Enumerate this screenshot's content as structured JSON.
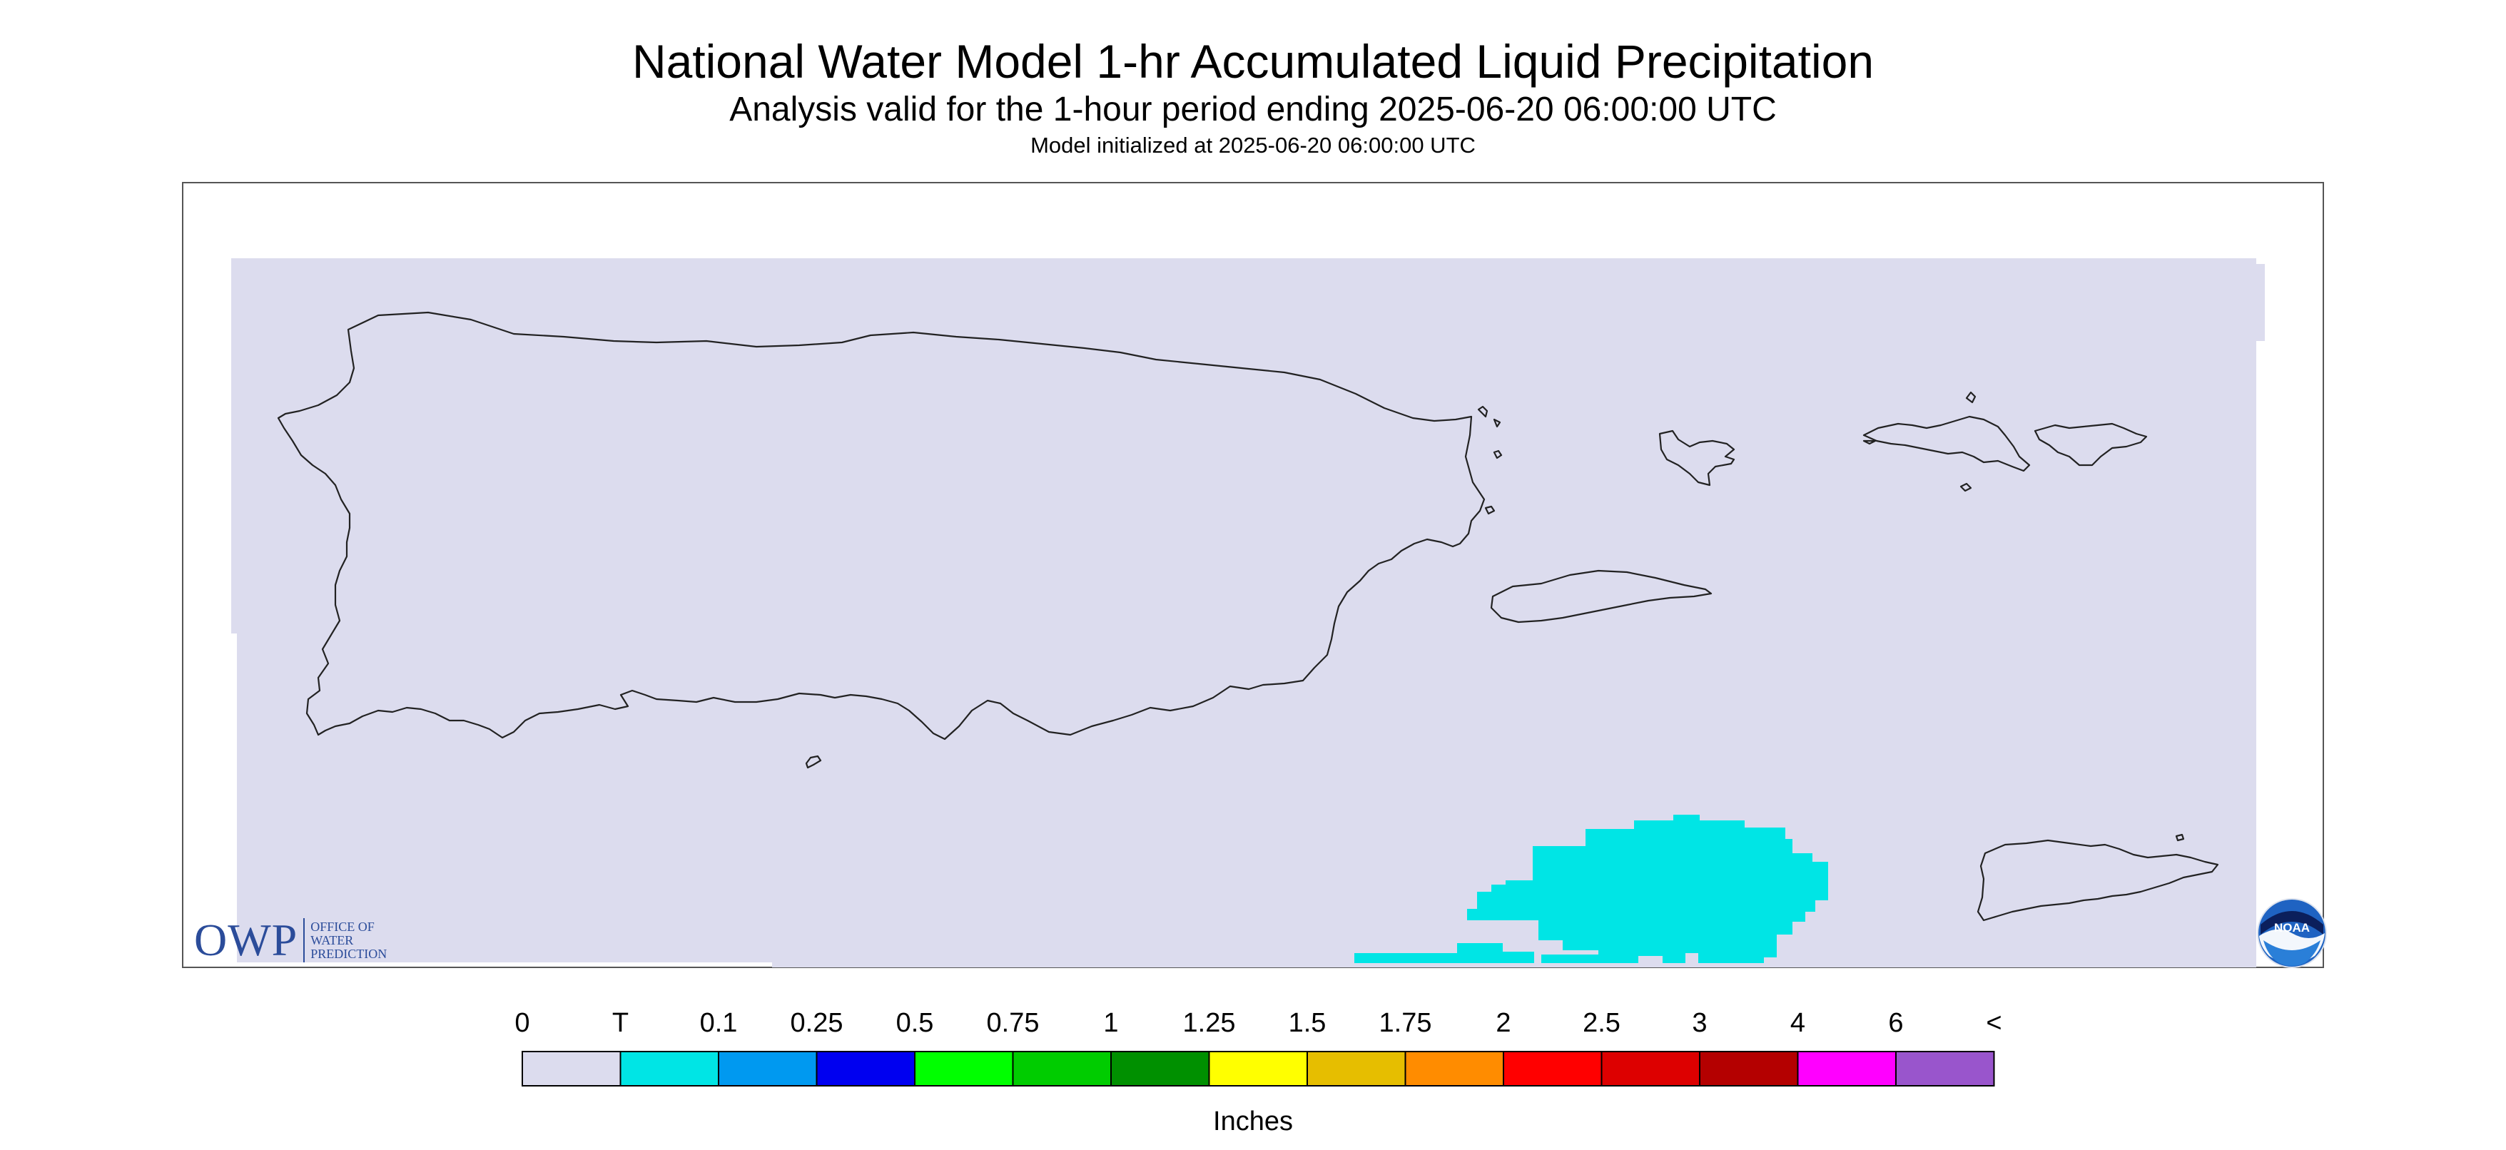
{
  "title": "National Water Model 1-hr Accumulated Liquid Precipitation",
  "subtitle": "Analysis valid for the 1-hour period ending 2025-06-20 06:00:00 UTC",
  "init_line": "Model initialized at 2025-06-20 06:00:00 UTC",
  "colors": {
    "no_data_region": "#dcdcee",
    "trace": "#00e5e5",
    "frame": "#555555",
    "coast": "#222222",
    "noaa_blue": "#1f63c2",
    "owp_blue": "#2b4c9a"
  },
  "map": {
    "region": "Puerto Rico and U.S. Virgin Islands",
    "precip_areas": [
      {
        "category": "T",
        "location": "Caribbean Sea south of Vieques"
      }
    ]
  },
  "legend": {
    "unit_label": "Inches",
    "tick_labels": [
      "0",
      "T",
      "0.1",
      "0.25",
      "0.5",
      "0.75",
      "1",
      "1.25",
      "1.5",
      "1.75",
      "2",
      "2.5",
      "3",
      "4",
      "6",
      "<"
    ],
    "bins": [
      {
        "label": "0",
        "color": "#dcdcee"
      },
      {
        "label": "T",
        "color": "#00e5e5"
      },
      {
        "label": "0.1",
        "color": "#0099f0"
      },
      {
        "label": "0.25",
        "color": "#0000f0"
      },
      {
        "label": "0.5",
        "color": "#00ff00"
      },
      {
        "label": "0.75",
        "color": "#00cc00"
      },
      {
        "label": "1",
        "color": "#009000"
      },
      {
        "label": "1.25",
        "color": "#ffff00"
      },
      {
        "label": "1.5",
        "color": "#e6be00"
      },
      {
        "label": "1.75",
        "color": "#ff8c00"
      },
      {
        "label": "2",
        "color": "#ff0000"
      },
      {
        "label": "2.5",
        "color": "#dd0000"
      },
      {
        "label": "3",
        "color": "#b40000"
      },
      {
        "label": "4",
        "color": "#ff00ff"
      },
      {
        "label": "6",
        "color": "#9955cc"
      }
    ]
  },
  "logos": {
    "owp_mark": "OWP",
    "owp_lines": [
      "OFFICE OF",
      "WATER",
      "PREDICTION"
    ],
    "noaa_text": "NOAA"
  }
}
